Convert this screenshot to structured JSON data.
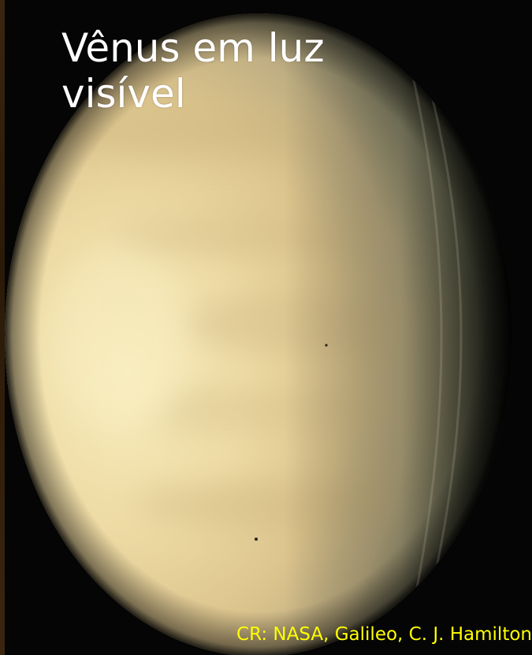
{
  "title": "Vênus em luz\nvisível",
  "credit": "CR: NASA, Galileo, C. J. Hamilton",
  "colors": {
    "title_text": "#ffffff",
    "credit_text": "#ffff00",
    "background": "#050505",
    "planet_light": "#f6e9b8",
    "planet_mid": "#e2cc95",
    "planet_terminator": "#8a8466"
  }
}
